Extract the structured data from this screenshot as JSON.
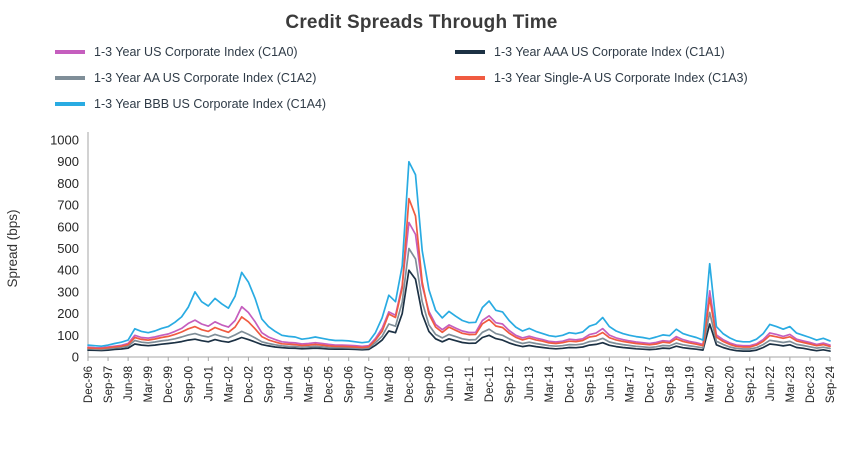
{
  "chart_data": {
    "type": "line",
    "title": "Credit Spreads Through Time",
    "xlabel": "",
    "ylabel": "Spread (bps)",
    "ylim": [
      0,
      1000
    ],
    "y_ticks": [
      0,
      100,
      200,
      300,
      400,
      500,
      600,
      700,
      800,
      900,
      1000
    ],
    "grid": false,
    "legend_position": "top",
    "x_tick_interval": 3,
    "x_tick_labels": [
      "Dec-96",
      "Sep-97",
      "Jun-98",
      "Mar-99",
      "Dec-99",
      "Sep-00",
      "Jun-01",
      "Mar-02",
      "Dec-02",
      "Sep-03",
      "Jun-04",
      "Mar-05",
      "Dec-05",
      "Sep-06",
      "Jun-07",
      "Mar-08",
      "Dec-08",
      "Sep-09",
      "Jun-10",
      "Mar-11",
      "Dec-11",
      "Sep-12",
      "Jun-13",
      "Mar-14",
      "Dec-14",
      "Sep-15",
      "Jun-16",
      "Mar-17",
      "Dec-17",
      "Sep-18",
      "Jun-19",
      "Mar-20",
      "Dec-20",
      "Sep-21",
      "Jun-22",
      "Mar-23",
      "Dec-23",
      "Sep-24"
    ],
    "x": [
      "Dec-96",
      "Mar-97",
      "Jun-97",
      "Sep-97",
      "Dec-97",
      "Mar-98",
      "Jun-98",
      "Sep-98",
      "Dec-98",
      "Mar-99",
      "Jun-99",
      "Sep-99",
      "Dec-99",
      "Mar-00",
      "Jun-00",
      "Sep-00",
      "Dec-00",
      "Mar-01",
      "Jun-01",
      "Sep-01",
      "Dec-01",
      "Mar-02",
      "Jun-02",
      "Sep-02",
      "Dec-02",
      "Mar-03",
      "Jun-03",
      "Sep-03",
      "Dec-03",
      "Mar-04",
      "Jun-04",
      "Sep-04",
      "Dec-04",
      "Mar-05",
      "Jun-05",
      "Sep-05",
      "Dec-05",
      "Mar-06",
      "Jun-06",
      "Sep-06",
      "Dec-06",
      "Mar-07",
      "Jun-07",
      "Sep-07",
      "Dec-07",
      "Mar-08",
      "Jun-08",
      "Sep-08",
      "Dec-08",
      "Mar-09",
      "Jun-09",
      "Sep-09",
      "Dec-09",
      "Mar-10",
      "Jun-10",
      "Sep-10",
      "Dec-10",
      "Mar-11",
      "Jun-11",
      "Sep-11",
      "Dec-11",
      "Mar-12",
      "Jun-12",
      "Sep-12",
      "Dec-12",
      "Mar-13",
      "Jun-13",
      "Sep-13",
      "Dec-13",
      "Mar-14",
      "Jun-14",
      "Sep-14",
      "Dec-14",
      "Mar-15",
      "Jun-15",
      "Sep-15",
      "Dec-15",
      "Mar-16",
      "Jun-16",
      "Sep-16",
      "Dec-16",
      "Mar-17",
      "Jun-17",
      "Sep-17",
      "Dec-17",
      "Mar-18",
      "Jun-18",
      "Sep-18",
      "Dec-18",
      "Mar-19",
      "Jun-19",
      "Sep-19",
      "Dec-19",
      "Mar-20",
      "Jun-20",
      "Sep-20",
      "Dec-20",
      "Mar-21",
      "Jun-21",
      "Sep-21",
      "Dec-21",
      "Mar-22",
      "Jun-22",
      "Sep-22",
      "Dec-22",
      "Mar-23",
      "Jun-23",
      "Sep-23",
      "Dec-23",
      "Mar-24",
      "Jun-24",
      "Sep-24"
    ],
    "series": [
      {
        "id": "c1a0",
        "name": "1-3 Year US Corporate Index (C1A0)",
        "color": "#C55EBE",
        "values": [
          45,
          43,
          42,
          46,
          50,
          54,
          62,
          100,
          90,
          87,
          92,
          100,
          106,
          118,
          132,
          155,
          170,
          152,
          142,
          162,
          148,
          138,
          168,
          232,
          205,
          162,
          112,
          92,
          80,
          70,
          67,
          65,
          60,
          62,
          66,
          62,
          58,
          55,
          55,
          54,
          52,
          49,
          52,
          85,
          132,
          208,
          192,
          330,
          620,
          565,
          330,
          210,
          150,
          126,
          148,
          133,
          120,
          113,
          114,
          168,
          190,
          158,
          152,
          122,
          100,
          88,
          96,
          87,
          80,
          72,
          69,
          73,
          82,
          79,
          84,
          103,
          110,
          131,
          101,
          88,
          80,
          74,
          69,
          66,
          62,
          67,
          75,
          72,
          94,
          80,
          72,
          66,
          58,
          305,
          102,
          80,
          65,
          55,
          52,
          52,
          61,
          80,
          111,
          104,
          95,
          104,
          82,
          74,
          67,
          58,
          64,
          55
        ]
      },
      {
        "id": "c1a1",
        "name": "1-3 Year AAA US Corporate Index (C1A1)",
        "color": "#1C3144",
        "values": [
          32,
          31,
          30,
          32,
          35,
          37,
          41,
          60,
          55,
          52,
          55,
          59,
          62,
          66,
          71,
          78,
          82,
          75,
          70,
          80,
          73,
          68,
          78,
          90,
          80,
          69,
          57,
          51,
          46,
          43,
          41,
          40,
          38,
          39,
          41,
          39,
          37,
          36,
          36,
          36,
          35,
          33,
          35,
          54,
          78,
          120,
          112,
          200,
          400,
          358,
          198,
          118,
          84,
          70,
          84,
          75,
          67,
          63,
          64,
          90,
          100,
          85,
          78,
          65,
          55,
          48,
          53,
          48,
          44,
          40,
          38,
          40,
          44,
          43,
          46,
          55,
          58,
          66,
          54,
          48,
          44,
          41,
          38,
          36,
          34,
          36,
          41,
          39,
          50,
          43,
          39,
          36,
          32,
          152,
          56,
          44,
          35,
          29,
          27,
          27,
          32,
          44,
          60,
          56,
          51,
          56,
          44,
          40,
          34,
          29,
          33,
          27
        ]
      },
      {
        "id": "c1a2",
        "name": "1-3 Year AA US Corporate Index (C1A2)",
        "color": "#7F8E98",
        "values": [
          38,
          36,
          35,
          38,
          42,
          45,
          50,
          76,
          68,
          65,
          69,
          74,
          78,
          84,
          92,
          102,
          108,
          98,
          92,
          104,
          95,
          88,
          102,
          118,
          104,
          88,
          70,
          62,
          56,
          51,
          49,
          48,
          45,
          47,
          49,
          47,
          44,
          43,
          43,
          42,
          41,
          39,
          42,
          66,
          96,
          152,
          142,
          252,
          500,
          452,
          255,
          148,
          104,
          88,
          104,
          94,
          84,
          79,
          80,
          114,
          128,
          108,
          100,
          84,
          71,
          62,
          68,
          62,
          57,
          52,
          50,
          52,
          57,
          56,
          60,
          71,
          75,
          86,
          69,
          62,
          57,
          53,
          49,
          47,
          44,
          47,
          53,
          51,
          64,
          56,
          51,
          47,
          42,
          205,
          73,
          58,
          46,
          39,
          37,
          37,
          43,
          57,
          77,
          72,
          67,
          72,
          58,
          53,
          47,
          41,
          45,
          39
        ]
      },
      {
        "id": "c1a3",
        "name": "1-3 Year Single-A US Corporate Index (C1A3)",
        "color": "#F05B41",
        "values": [
          42,
          40,
          39,
          43,
          47,
          50,
          57,
          90,
          81,
          78,
          83,
          90,
          95,
          104,
          115,
          130,
          140,
          126,
          118,
          136,
          124,
          114,
          138,
          185,
          162,
          130,
          94,
          79,
          69,
          61,
          59,
          57,
          53,
          55,
          58,
          55,
          51,
          49,
          49,
          48,
          46,
          44,
          47,
          78,
          118,
          198,
          182,
          318,
          730,
          650,
          345,
          198,
          138,
          114,
          138,
          123,
          109,
          103,
          104,
          153,
          173,
          143,
          136,
          110,
          91,
          79,
          87,
          79,
          73,
          65,
          62,
          66,
          73,
          71,
          76,
          92,
          97,
          113,
          89,
          79,
          72,
          67,
          62,
          59,
          56,
          60,
          68,
          65,
          84,
          72,
          65,
          59,
          52,
          272,
          92,
          72,
          58,
          49,
          46,
          46,
          55,
          72,
          99,
          93,
          86,
          93,
          74,
          67,
          60,
          52,
          57,
          49
        ]
      },
      {
        "id": "c1a4",
        "name": "1-3 Year BBB US Corporate Index (C1A4)",
        "color": "#29ABE2",
        "values": [
          55,
          52,
          50,
          55,
          62,
          68,
          78,
          130,
          118,
          112,
          120,
          132,
          140,
          160,
          185,
          230,
          300,
          255,
          235,
          270,
          245,
          225,
          280,
          390,
          345,
          270,
          175,
          140,
          118,
          100,
          95,
          92,
          82,
          86,
          92,
          86,
          80,
          76,
          76,
          74,
          70,
          66,
          70,
          112,
          180,
          285,
          255,
          420,
          900,
          840,
          490,
          310,
          215,
          180,
          210,
          188,
          168,
          158,
          160,
          228,
          258,
          215,
          208,
          168,
          138,
          120,
          132,
          118,
          108,
          98,
          94,
          100,
          112,
          108,
          115,
          142,
          152,
          182,
          140,
          120,
          108,
          100,
          94,
          90,
          84,
          92,
          102,
          98,
          128,
          108,
          98,
          90,
          78,
          430,
          140,
          108,
          88,
          74,
          70,
          70,
          82,
          108,
          150,
          140,
          128,
          140,
          110,
          100,
          90,
          78,
          86,
          74
        ]
      }
    ]
  }
}
